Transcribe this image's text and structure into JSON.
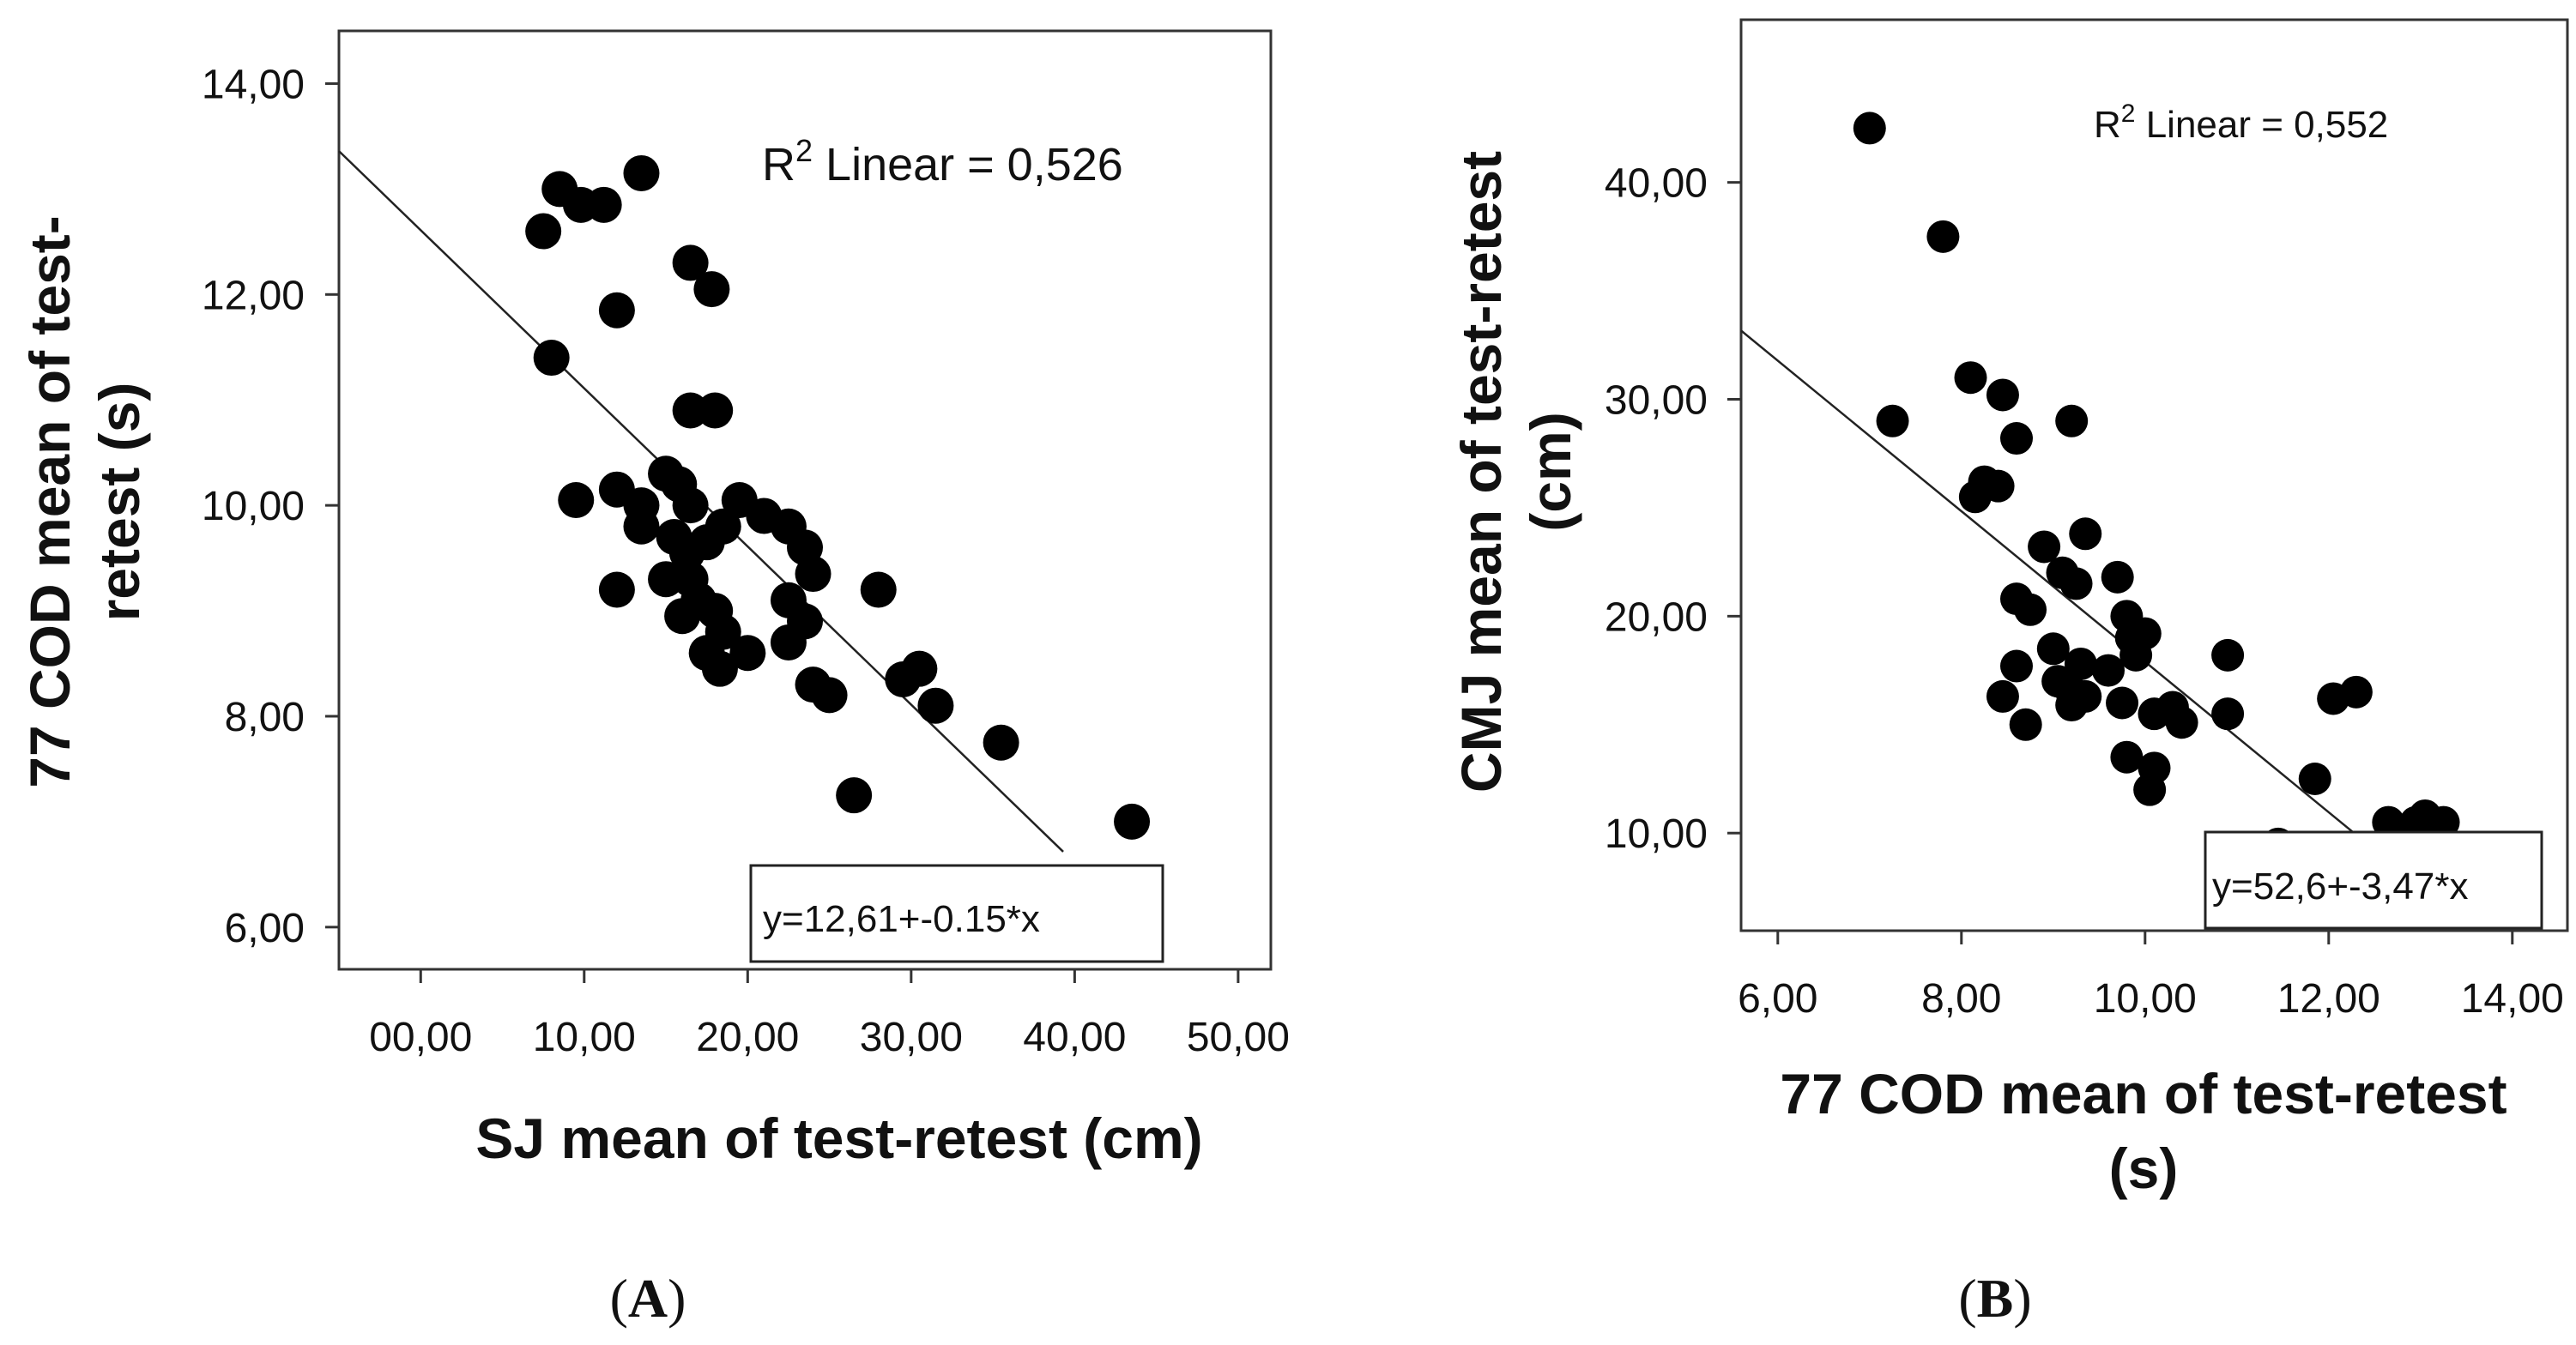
{
  "chart_data": [
    {
      "type": "scatter",
      "panel_label": "A",
      "xlabel": "SJ mean of test-retest (cm)",
      "ylabel_lines": [
        "77 COD mean of test-",
        "retest (s)"
      ],
      "xlim": [
        -5,
        52
      ],
      "ylim": [
        5.6,
        14.5
      ],
      "x_ticks": [
        0,
        10,
        20,
        30,
        40,
        50
      ],
      "x_tick_labels": [
        "00,00",
        "10,00",
        "20,00",
        "30,00",
        "40,00",
        "50,00"
      ],
      "y_ticks": [
        6,
        8,
        10,
        12,
        14
      ],
      "y_tick_labels": [
        "6,00",
        "8,00",
        "10,00",
        "12,00",
        "14,00"
      ],
      "r2_prefix": "R",
      "r2_sup": "2",
      "r2_text": " Linear = 0,526",
      "equation": "y=12,61+-0.15*x",
      "fit": {
        "intercept": 12.61,
        "slope": -0.15,
        "x_start": -5,
        "x_end": 39.3
      },
      "points": [
        [
          7.5,
          12.6
        ],
        [
          8.5,
          13.0
        ],
        [
          9.8,
          12.85
        ],
        [
          11.2,
          12.85
        ],
        [
          13.5,
          13.15
        ],
        [
          8.0,
          11.4
        ],
        [
          12.0,
          11.85
        ],
        [
          16.5,
          12.3
        ],
        [
          17.8,
          12.05
        ],
        [
          16.5,
          10.9
        ],
        [
          18.0,
          10.9
        ],
        [
          9.5,
          10.05
        ],
        [
          12.0,
          10.15
        ],
        [
          13.5,
          10.0
        ],
        [
          13.5,
          9.8
        ],
        [
          15.0,
          10.3
        ],
        [
          15.8,
          10.2
        ],
        [
          16.5,
          10.0
        ],
        [
          15.5,
          9.7
        ],
        [
          16.3,
          9.55
        ],
        [
          12.0,
          9.2
        ],
        [
          15.0,
          9.3
        ],
        [
          16.5,
          9.3
        ],
        [
          16.0,
          8.95
        ],
        [
          17.0,
          9.1
        ],
        [
          18.0,
          9.0
        ],
        [
          18.5,
          8.8
        ],
        [
          17.5,
          8.6
        ],
        [
          18.3,
          8.45
        ],
        [
          20.0,
          8.6
        ],
        [
          17.5,
          9.65
        ],
        [
          18.5,
          9.8
        ],
        [
          19.5,
          10.05
        ],
        [
          21.0,
          9.9
        ],
        [
          22.5,
          9.8
        ],
        [
          23.5,
          9.6
        ],
        [
          24.0,
          9.35
        ],
        [
          22.5,
          9.1
        ],
        [
          23.5,
          8.9
        ],
        [
          22.5,
          8.7
        ],
        [
          24.0,
          8.3
        ],
        [
          25.0,
          8.2
        ],
        [
          28.0,
          9.2
        ],
        [
          29.5,
          8.35
        ],
        [
          30.5,
          8.45
        ],
        [
          31.5,
          8.1
        ],
        [
          35.5,
          7.75
        ],
        [
          26.5,
          7.25
        ],
        [
          43.5,
          7.0
        ]
      ]
    },
    {
      "type": "scatter",
      "panel_label": "B",
      "xlabel_lines": [
        "77 COD mean of test-retest",
        "(s)"
      ],
      "ylabel_lines": [
        "CMJ mean of test-retest",
        "(cm)"
      ],
      "xlim": [
        5.6,
        14.6
      ],
      "ylim": [
        5.5,
        47.5
      ],
      "x_ticks": [
        6,
        8,
        10,
        12,
        14
      ],
      "x_tick_labels": [
        "6,00",
        "8,00",
        "10,00",
        "12,00",
        "14,00"
      ],
      "y_ticks": [
        10,
        20,
        30,
        40
      ],
      "y_tick_labels": [
        "10,00",
        "20,00",
        "30,00",
        "40,00"
      ],
      "r2_prefix": "R",
      "r2_sup": "2",
      "r2_text": " Linear = 0,552",
      "equation": "y=52,6+-3,47*x",
      "fit": {
        "intercept": 52.6,
        "slope": -3.47,
        "x_start": 5.6,
        "x_end": 12.95
      },
      "points": [
        [
          7.0,
          42.5
        ],
        [
          7.8,
          37.5
        ],
        [
          7.25,
          29.0
        ],
        [
          8.1,
          31.0
        ],
        [
          8.45,
          30.2
        ],
        [
          9.2,
          29.0
        ],
        [
          8.25,
          26.2
        ],
        [
          8.4,
          26.0
        ],
        [
          8.15,
          25.5
        ],
        [
          8.6,
          28.2
        ],
        [
          8.9,
          23.2
        ],
        [
          9.1,
          22.0
        ],
        [
          9.35,
          23.8
        ],
        [
          9.25,
          21.5
        ],
        [
          9.7,
          21.8
        ],
        [
          8.6,
          20.8
        ],
        [
          8.75,
          20.3
        ],
        [
          9.0,
          18.5
        ],
        [
          9.3,
          17.8
        ],
        [
          9.8,
          20.0
        ],
        [
          9.85,
          19.0
        ],
        [
          10.0,
          19.2
        ],
        [
          9.9,
          18.2
        ],
        [
          9.6,
          17.5
        ],
        [
          8.6,
          17.7
        ],
        [
          9.05,
          17.0
        ],
        [
          9.2,
          16.5
        ],
        [
          9.2,
          15.9
        ],
        [
          9.35,
          16.3
        ],
        [
          9.75,
          16.0
        ],
        [
          8.45,
          16.3
        ],
        [
          8.7,
          15.0
        ],
        [
          10.1,
          15.5
        ],
        [
          10.3,
          15.8
        ],
        [
          10.4,
          15.1
        ],
        [
          9.8,
          13.5
        ],
        [
          10.1,
          13.0
        ],
        [
          10.05,
          12.0
        ],
        [
          10.9,
          15.5
        ],
        [
          10.9,
          18.2
        ],
        [
          11.45,
          9.5
        ],
        [
          11.85,
          12.5
        ],
        [
          12.05,
          16.2
        ],
        [
          12.3,
          16.5
        ],
        [
          12.65,
          10.5
        ],
        [
          12.95,
          10.5
        ],
        [
          12.9,
          9.9
        ],
        [
          13.05,
          10.8
        ],
        [
          13.25,
          10.5
        ]
      ]
    }
  ]
}
